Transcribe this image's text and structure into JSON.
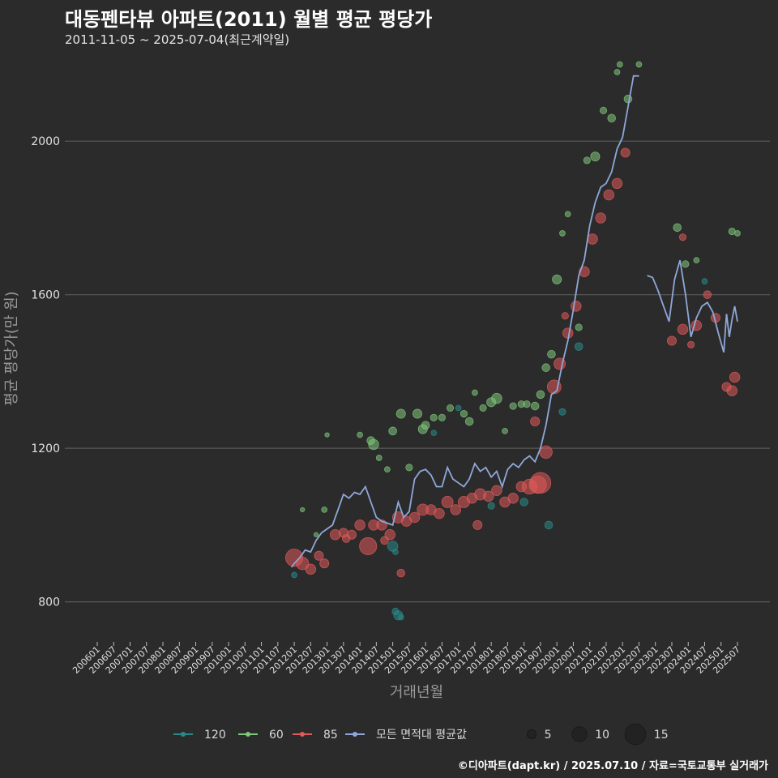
{
  "header": {
    "title": "대동펜타뷰 아파트(2011) 월별 평균 평당가",
    "subtitle": "2011-11-05 ~ 2025-07-04(최근계약일)"
  },
  "footer": {
    "credit": "©디아파트(dapt.kr) / 2025.07.10 / 자료=국토교통부 실거래가"
  },
  "colors": {
    "background": "#2b2b2b",
    "grid": "#5a5a5a",
    "area120": "#2a8a8a",
    "area60": "#7fc77a",
    "area85": "#e05a5a",
    "avg_line": "#8fa8d8"
  },
  "chart_data": {
    "type": "scatter",
    "title": "대동펜타뷰 아파트(2011) 월별 평균 평당가",
    "xlabel": "거래년월",
    "ylabel": "평균 평당가(만 원)",
    "ylim": [
      700,
      2220
    ],
    "yticks": [
      800,
      1200,
      1600,
      2000
    ],
    "ytick_labels": [
      "800",
      "1200",
      "1600",
      "2000"
    ],
    "x_start": "200601",
    "x_end": "202507",
    "xtick_labels": [
      "200601",
      "200607",
      "200701",
      "200707",
      "200801",
      "200807",
      "200901",
      "200907",
      "201001",
      "201007",
      "201101",
      "201107",
      "201201",
      "201207",
      "201301",
      "201307",
      "201401",
      "201407",
      "201501",
      "201507",
      "201601",
      "201607",
      "201701",
      "201707",
      "201801",
      "201807",
      "201901",
      "201907",
      "202001",
      "202007",
      "202101",
      "202107",
      "202201",
      "202207",
      "202301",
      "202307",
      "202401",
      "202407",
      "202501",
      "202507"
    ],
    "legend": {
      "series_labels": [
        "120",
        "60",
        "85",
        "모든 면적대 평균값"
      ],
      "size_labels": [
        "5",
        "10",
        "15"
      ],
      "size_values": [
        5,
        10,
        15
      ]
    },
    "series": [
      {
        "name": "120",
        "points": [
          {
            "x": "201201",
            "y": 870,
            "n": 2
          },
          {
            "x": "201501",
            "y": 945,
            "n": 6
          },
          {
            "x": "201502",
            "y": 930,
            "n": 2
          },
          {
            "x": "201502",
            "y": 775,
            "n": 3
          },
          {
            "x": "201503",
            "y": 765,
            "n": 5
          },
          {
            "x": "201504",
            "y": 760,
            "n": 2
          },
          {
            "x": "201604",
            "y": 1240,
            "n": 2
          },
          {
            "x": "201701",
            "y": 1305,
            "n": 2
          },
          {
            "x": "201801",
            "y": 1050,
            "n": 3
          },
          {
            "x": "201901",
            "y": 1060,
            "n": 4
          },
          {
            "x": "201910",
            "y": 1000,
            "n": 4
          },
          {
            "x": "202003",
            "y": 1295,
            "n": 3
          },
          {
            "x": "202009",
            "y": 1465,
            "n": 4
          },
          {
            "x": "202407",
            "y": 1635,
            "n": 2
          }
        ]
      },
      {
        "name": "60",
        "points": [
          {
            "x": "201204",
            "y": 1040,
            "n": 1
          },
          {
            "x": "201209",
            "y": 975,
            "n": 1
          },
          {
            "x": "201212",
            "y": 1040,
            "n": 2
          },
          {
            "x": "201301",
            "y": 1235,
            "n": 1
          },
          {
            "x": "201401",
            "y": 1235,
            "n": 2
          },
          {
            "x": "201405",
            "y": 1220,
            "n": 4
          },
          {
            "x": "201406",
            "y": 1210,
            "n": 6
          },
          {
            "x": "201408",
            "y": 1175,
            "n": 2
          },
          {
            "x": "201411",
            "y": 1145,
            "n": 2
          },
          {
            "x": "201501",
            "y": 1245,
            "n": 4
          },
          {
            "x": "201504",
            "y": 1290,
            "n": 5
          },
          {
            "x": "201507",
            "y": 1150,
            "n": 3
          },
          {
            "x": "201510",
            "y": 1290,
            "n": 5
          },
          {
            "x": "201512",
            "y": 1250,
            "n": 5
          },
          {
            "x": "201601",
            "y": 1260,
            "n": 4
          },
          {
            "x": "201604",
            "y": 1280,
            "n": 3
          },
          {
            "x": "201607",
            "y": 1280,
            "n": 3
          },
          {
            "x": "201610",
            "y": 1305,
            "n": 3
          },
          {
            "x": "201703",
            "y": 1290,
            "n": 3
          },
          {
            "x": "201705",
            "y": 1270,
            "n": 4
          },
          {
            "x": "201707",
            "y": 1345,
            "n": 2
          },
          {
            "x": "201710",
            "y": 1305,
            "n": 3
          },
          {
            "x": "201801",
            "y": 1320,
            "n": 5
          },
          {
            "x": "201803",
            "y": 1330,
            "n": 6
          },
          {
            "x": "201806",
            "y": 1245,
            "n": 2
          },
          {
            "x": "201809",
            "y": 1310,
            "n": 3
          },
          {
            "x": "201812",
            "y": 1315,
            "n": 3
          },
          {
            "x": "201902",
            "y": 1315,
            "n": 3
          },
          {
            "x": "201905",
            "y": 1310,
            "n": 4
          },
          {
            "x": "201907",
            "y": 1340,
            "n": 4
          },
          {
            "x": "201909",
            "y": 1410,
            "n": 4
          },
          {
            "x": "201911",
            "y": 1445,
            "n": 4
          },
          {
            "x": "202001",
            "y": 1640,
            "n": 5
          },
          {
            "x": "202003",
            "y": 1760,
            "n": 2
          },
          {
            "x": "202005",
            "y": 1810,
            "n": 2
          },
          {
            "x": "202009",
            "y": 1515,
            "n": 3
          },
          {
            "x": "202012",
            "y": 1950,
            "n": 3
          },
          {
            "x": "202103",
            "y": 1960,
            "n": 5
          },
          {
            "x": "202106",
            "y": 2080,
            "n": 3
          },
          {
            "x": "202109",
            "y": 2060,
            "n": 4
          },
          {
            "x": "202111",
            "y": 2180,
            "n": 2
          },
          {
            "x": "202112",
            "y": 2200,
            "n": 2
          },
          {
            "x": "202203",
            "y": 2110,
            "n": 4
          },
          {
            "x": "202207",
            "y": 2200,
            "n": 2
          },
          {
            "x": "202309",
            "y": 1775,
            "n": 4
          },
          {
            "x": "202312",
            "y": 1680,
            "n": 3
          },
          {
            "x": "202404",
            "y": 1690,
            "n": 2
          },
          {
            "x": "202505",
            "y": 1765,
            "n": 3
          },
          {
            "x": "202507",
            "y": 1760,
            "n": 2
          }
        ]
      },
      {
        "name": "85",
        "points": [
          {
            "x": "201201",
            "y": 915,
            "n": 12
          },
          {
            "x": "201204",
            "y": 900,
            "n": 8
          },
          {
            "x": "201207",
            "y": 885,
            "n": 6
          },
          {
            "x": "201210",
            "y": 920,
            "n": 5
          },
          {
            "x": "201212",
            "y": 900,
            "n": 5
          },
          {
            "x": "201304",
            "y": 975,
            "n": 6
          },
          {
            "x": "201307",
            "y": 980,
            "n": 5
          },
          {
            "x": "201310",
            "y": 975,
            "n": 5
          },
          {
            "x": "201401",
            "y": 1000,
            "n": 6
          },
          {
            "x": "201404",
            "y": 945,
            "n": 12
          },
          {
            "x": "201406",
            "y": 1000,
            "n": 6
          },
          {
            "x": "201409",
            "y": 1000,
            "n": 6
          },
          {
            "x": "201412",
            "y": 975,
            "n": 6
          },
          {
            "x": "201503",
            "y": 1020,
            "n": 7
          },
          {
            "x": "201506",
            "y": 1010,
            "n": 6
          },
          {
            "x": "201509",
            "y": 1020,
            "n": 6
          },
          {
            "x": "201512",
            "y": 1040,
            "n": 7
          },
          {
            "x": "201603",
            "y": 1040,
            "n": 6
          },
          {
            "x": "201606",
            "y": 1030,
            "n": 6
          },
          {
            "x": "201609",
            "y": 1060,
            "n": 7
          },
          {
            "x": "201612",
            "y": 1040,
            "n": 6
          },
          {
            "x": "201703",
            "y": 1060,
            "n": 7
          },
          {
            "x": "201706",
            "y": 1070,
            "n": 6
          },
          {
            "x": "201709",
            "y": 1080,
            "n": 7
          },
          {
            "x": "201712",
            "y": 1075,
            "n": 6
          },
          {
            "x": "201803",
            "y": 1090,
            "n": 6
          },
          {
            "x": "201806",
            "y": 1060,
            "n": 6
          },
          {
            "x": "201809",
            "y": 1070,
            "n": 6
          },
          {
            "x": "201812",
            "y": 1100,
            "n": 6
          },
          {
            "x": "201903",
            "y": 1100,
            "n": 10
          },
          {
            "x": "201906",
            "y": 1105,
            "n": 12
          },
          {
            "x": "201907",
            "y": 1110,
            "n": 15
          },
          {
            "x": "201909",
            "y": 1190,
            "n": 8
          },
          {
            "x": "201912",
            "y": 1360,
            "n": 9
          },
          {
            "x": "202002",
            "y": 1420,
            "n": 7
          },
          {
            "x": "202005",
            "y": 1500,
            "n": 6
          },
          {
            "x": "202008",
            "y": 1570,
            "n": 6
          },
          {
            "x": "202011",
            "y": 1660,
            "n": 6
          },
          {
            "x": "202102",
            "y": 1745,
            "n": 6
          },
          {
            "x": "202105",
            "y": 1800,
            "n": 6
          },
          {
            "x": "202108",
            "y": 1860,
            "n": 6
          },
          {
            "x": "202111",
            "y": 1890,
            "n": 6
          },
          {
            "x": "202202",
            "y": 1970,
            "n": 5
          },
          {
            "x": "202307",
            "y": 1480,
            "n": 5
          },
          {
            "x": "202311",
            "y": 1510,
            "n": 6
          },
          {
            "x": "202404",
            "y": 1520,
            "n": 6
          },
          {
            "x": "202408",
            "y": 1600,
            "n": 4
          },
          {
            "x": "202411",
            "y": 1540,
            "n": 5
          },
          {
            "x": "202503",
            "y": 1360,
            "n": 5
          },
          {
            "x": "202505",
            "y": 1350,
            "n": 6
          },
          {
            "x": "202506",
            "y": 1385,
            "n": 6
          },
          {
            "x": "201504",
            "y": 875,
            "n": 4
          },
          {
            "x": "201410",
            "y": 960,
            "n": 4
          },
          {
            "x": "201308",
            "y": 965,
            "n": 4
          },
          {
            "x": "201708",
            "y": 1000,
            "n": 5
          },
          {
            "x": "201905",
            "y": 1270,
            "n": 5
          },
          {
            "x": "202004",
            "y": 1545,
            "n": 3
          },
          {
            "x": "202311",
            "y": 1750,
            "n": 3
          },
          {
            "x": "202402",
            "y": 1470,
            "n": 3
          }
        ]
      },
      {
        "name": "모든 면적대 평균값",
        "line": [
          [
            "201112",
            890
          ],
          [
            "201201",
            900
          ],
          [
            "201203",
            915
          ],
          [
            "201205",
            935
          ],
          [
            "201207",
            930
          ],
          [
            "201209",
            960
          ],
          [
            "201211",
            980
          ],
          [
            "201301",
            990
          ],
          [
            "201303",
            1000
          ],
          [
            "201305",
            1040
          ],
          [
            "201307",
            1080
          ],
          [
            "201309",
            1070
          ],
          [
            "201311",
            1085
          ],
          [
            "201401",
            1080
          ],
          [
            "201403",
            1100
          ],
          [
            "201405",
            1060
          ],
          [
            "201407",
            1020
          ],
          [
            "201409",
            1010
          ],
          [
            "201411",
            1005
          ],
          [
            "201501",
            1000
          ],
          [
            "201503",
            1060
          ],
          [
            "201505",
            1020
          ],
          [
            "201507",
            1035
          ],
          [
            "201509",
            1120
          ],
          [
            "201511",
            1140
          ],
          [
            "201601",
            1145
          ],
          [
            "201603",
            1130
          ],
          [
            "201605",
            1100
          ],
          [
            "201607",
            1100
          ],
          [
            "201609",
            1150
          ],
          [
            "201611",
            1120
          ],
          [
            "201701",
            1110
          ],
          [
            "201703",
            1100
          ],
          [
            "201705",
            1120
          ],
          [
            "201707",
            1160
          ],
          [
            "201709",
            1140
          ],
          [
            "201711",
            1150
          ],
          [
            "201801",
            1125
          ],
          [
            "201803",
            1140
          ],
          [
            "201805",
            1100
          ],
          [
            "201807",
            1145
          ],
          [
            "201809",
            1160
          ],
          [
            "201811",
            1150
          ],
          [
            "201901",
            1170
          ],
          [
            "201903",
            1180
          ],
          [
            "201905",
            1165
          ],
          [
            "201907",
            1200
          ],
          [
            "201909",
            1260
          ],
          [
            "201911",
            1340
          ],
          [
            "202001",
            1350
          ],
          [
            "202003",
            1420
          ],
          [
            "202005",
            1480
          ],
          [
            "202007",
            1560
          ],
          [
            "202009",
            1650
          ],
          [
            "202011",
            1690
          ],
          [
            "202101",
            1780
          ],
          [
            "202103",
            1840
          ],
          [
            "202105",
            1880
          ],
          [
            "202107",
            1890
          ],
          [
            "202109",
            1920
          ],
          [
            "202111",
            1980
          ],
          [
            "202201",
            2010
          ],
          [
            "202203",
            2090
          ],
          [
            "202205",
            2170
          ],
          [
            "202207",
            2170
          ],
          null,
          [
            "202210",
            1650
          ],
          [
            "202212",
            1645
          ],
          [
            "202302",
            1610
          ],
          [
            "202304",
            1570
          ],
          [
            "202306",
            1530
          ],
          [
            "202308",
            1640
          ],
          [
            "202310",
            1690
          ],
          [
            "202312",
            1600
          ],
          [
            "202402",
            1490
          ],
          [
            "202404",
            1540
          ],
          [
            "202406",
            1570
          ],
          [
            "202408",
            1580
          ],
          [
            "202410",
            1555
          ],
          [
            "202412",
            1500
          ],
          [
            "202502",
            1450
          ],
          [
            "202503",
            1550
          ],
          [
            "202504",
            1490
          ],
          [
            "202505",
            1535
          ],
          [
            "202506",
            1570
          ],
          [
            "202507",
            1530
          ]
        ]
      }
    ]
  }
}
